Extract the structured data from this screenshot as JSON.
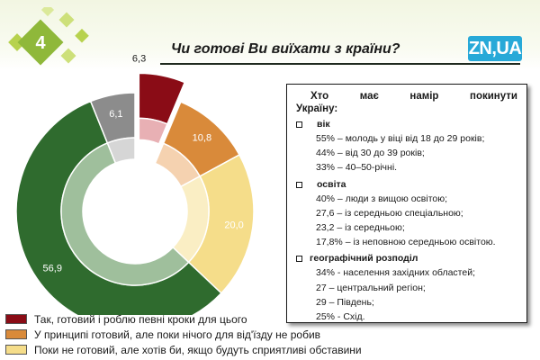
{
  "slide": {
    "number": "4",
    "title": "Чи готові Ви виїхати з країни?",
    "logo": "ZN,UA"
  },
  "chart_data": {
    "type": "pie",
    "variant": "doughnut-exploded",
    "title": "Чи готові Ви виїхати з країни?",
    "categories": [
      "Так, готовий і роблю певні кроки для цього",
      "У принципі готовий, але поки нічого для від'їзду не робив",
      "Поки не готовий, але хотів би, якщо будуть сприятливі обставини",
      "",
      ""
    ],
    "values": [
      6.3,
      10.8,
      20.0,
      56.9,
      6.1
    ],
    "labels": [
      "6,3",
      "10,8",
      "20,0",
      "56,9",
      "6,1"
    ],
    "colors": [
      "#8a0c16",
      "#d98a3a",
      "#f5dd8a",
      "#2f6b2e",
      "#8c8c8c"
    ],
    "legend_position": "bottom-left"
  },
  "info_box": {
    "heading_line1": "Хто має намір покинути",
    "heading_line2": "Україну:",
    "groups": [
      {
        "title": "вік",
        "items": [
          "55% – молодь у віці від 18 до 29 років;",
          "44% – від 30 до 39 років;",
          "33% – 40–50-річні."
        ]
      },
      {
        "title": "освіта",
        "items": [
          "40% – люди з вищою освітою;",
          "27,6 – із середньою спеціальною;",
          "23,2 – із середньою;",
          "17,8% – із неповною середньою освітою."
        ]
      },
      {
        "title": "географічний розподіл",
        "items": [
          "34% - населення західних областей;",
          "27 – центральний регіон;",
          "29 – Південь;",
          "25% - Схід."
        ]
      }
    ]
  }
}
